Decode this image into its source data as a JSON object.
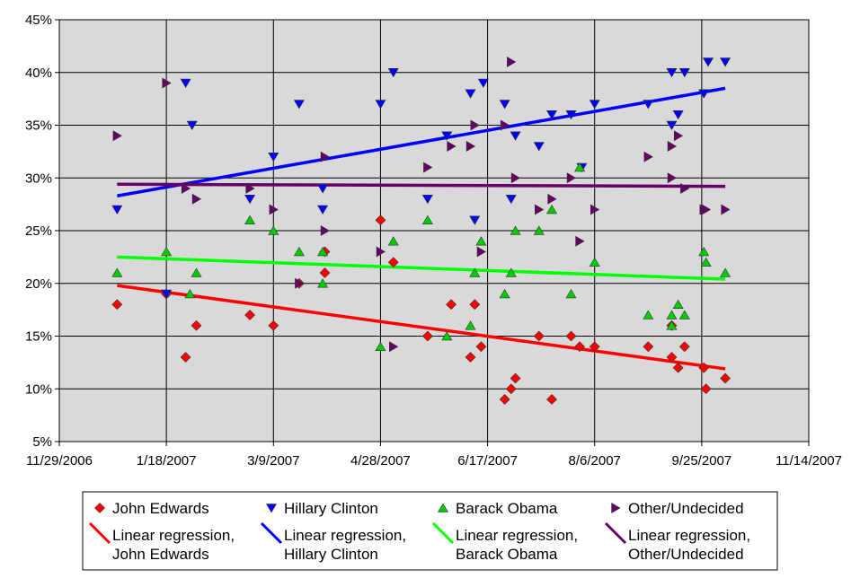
{
  "chart_data": {
    "type": "scatter",
    "x_axis": {
      "type": "date",
      "min": "2006-11-29",
      "max": "2007-11-14",
      "ticks": [
        "2006-11-29",
        "2007-01-18",
        "2007-03-09",
        "2007-04-28",
        "2007-06-17",
        "2007-08-06",
        "2007-09-25",
        "2007-11-14"
      ],
      "tick_labels": [
        "11/29/2006",
        "1/18/2007",
        "3/9/2007",
        "4/28/2007",
        "6/17/2007",
        "8/6/2007",
        "9/25/2007",
        "11/14/2007"
      ]
    },
    "y_axis": {
      "min": 5,
      "max": 45,
      "step": 5,
      "tick_labels": [
        "5%",
        "10%",
        "15%",
        "20%",
        "25%",
        "30%",
        "35%",
        "40%",
        "45%"
      ]
    },
    "grid": true,
    "plot_background": "#d9d9d9",
    "legend_position": "bottom",
    "series": [
      {
        "name": "John Edwards",
        "marker": "diamond",
        "color": "#ff0000",
        "points": [
          [
            "2006-12-26",
            18
          ],
          [
            "2007-01-18",
            19
          ],
          [
            "2007-01-27",
            13
          ],
          [
            "2007-02-01",
            16
          ],
          [
            "2007-02-26",
            17
          ],
          [
            "2007-03-09",
            16
          ],
          [
            "2007-03-21",
            20
          ],
          [
            "2007-03-33",
            21
          ],
          [
            "2007-04-02",
            23
          ],
          [
            "2007-04-28",
            26
          ],
          [
            "2007-05-04",
            22
          ],
          [
            "2007-05-20",
            15
          ],
          [
            "2007-05-31",
            18
          ],
          [
            "2007-06-09",
            13
          ],
          [
            "2007-06-11",
            18
          ],
          [
            "2007-06-14",
            14
          ],
          [
            "2007-06-25",
            9
          ],
          [
            "2007-06-28",
            10
          ],
          [
            "2007-06-30",
            11
          ],
          [
            "2007-07-11",
            15
          ],
          [
            "2007-07-17",
            9
          ],
          [
            "2007-07-26",
            15
          ],
          [
            "2007-07-30",
            14
          ],
          [
            "2007-08-06",
            14
          ],
          [
            "2007-08-31",
            14
          ],
          [
            "2007-09-11",
            13
          ],
          [
            "2007-09-11",
            16
          ],
          [
            "2007-09-14",
            12
          ],
          [
            "2007-09-17",
            14
          ],
          [
            "2007-09-26",
            12
          ],
          [
            "2007-09-27",
            10
          ],
          [
            "2007-10-06",
            11
          ]
        ]
      },
      {
        "name": "Hillary Clinton",
        "marker": "triangle-down",
        "color": "#0000ff",
        "points": [
          [
            "2006-12-26",
            27
          ],
          [
            "2007-01-18",
            19
          ],
          [
            "2007-01-27",
            39
          ],
          [
            "2007-01-30",
            35
          ],
          [
            "2007-02-26",
            28
          ],
          [
            "2007-03-09",
            32
          ],
          [
            "2007-03-21",
            37
          ],
          [
            "2007-04-01",
            29
          ],
          [
            "2007-04-01",
            27
          ],
          [
            "2007-04-28",
            37
          ],
          [
            "2007-05-04",
            40
          ],
          [
            "2007-05-20",
            28
          ],
          [
            "2007-05-29",
            34
          ],
          [
            "2007-06-09",
            38
          ],
          [
            "2007-06-11",
            26
          ],
          [
            "2007-06-15",
            39
          ],
          [
            "2007-06-25",
            37
          ],
          [
            "2007-06-28",
            28
          ],
          [
            "2007-06-30",
            34
          ],
          [
            "2007-07-11",
            33
          ],
          [
            "2007-07-17",
            36
          ],
          [
            "2007-07-26",
            36
          ],
          [
            "2007-07-31",
            31
          ],
          [
            "2007-08-06",
            37
          ],
          [
            "2007-08-31",
            37
          ],
          [
            "2007-09-11",
            40
          ],
          [
            "2007-09-11",
            35
          ],
          [
            "2007-09-14",
            36
          ],
          [
            "2007-09-17",
            40
          ],
          [
            "2007-09-26",
            38
          ],
          [
            "2007-09-28",
            41
          ],
          [
            "2007-10-06",
            41
          ]
        ]
      },
      {
        "name": "Barack Obama",
        "marker": "triangle-up",
        "color": "#00cc00",
        "points": [
          [
            "2006-12-26",
            21
          ],
          [
            "2007-01-18",
            23
          ],
          [
            "2007-01-29",
            19
          ],
          [
            "2007-02-01",
            21
          ],
          [
            "2007-02-26",
            26
          ],
          [
            "2007-03-09",
            25
          ],
          [
            "2007-03-21",
            23
          ],
          [
            "2007-04-01",
            20
          ],
          [
            "2007-04-01",
            23
          ],
          [
            "2007-04-28",
            14
          ],
          [
            "2007-05-04",
            24
          ],
          [
            "2007-05-20",
            26
          ],
          [
            "2007-05-29",
            15
          ],
          [
            "2007-06-09",
            16
          ],
          [
            "2007-06-11",
            21
          ],
          [
            "2007-06-14",
            24
          ],
          [
            "2007-06-25",
            19
          ],
          [
            "2007-06-28",
            21
          ],
          [
            "2007-06-30",
            25
          ],
          [
            "2007-07-11",
            25
          ],
          [
            "2007-07-17",
            27
          ],
          [
            "2007-07-26",
            19
          ],
          [
            "2007-07-30",
            31
          ],
          [
            "2007-08-06",
            22
          ],
          [
            "2007-08-31",
            17
          ],
          [
            "2007-09-11",
            17
          ],
          [
            "2007-09-11",
            16
          ],
          [
            "2007-09-14",
            18
          ],
          [
            "2007-09-17",
            17
          ],
          [
            "2007-09-26",
            23
          ],
          [
            "2007-09-27",
            22
          ],
          [
            "2007-10-06",
            21
          ]
        ]
      },
      {
        "name": "Other/Undecided",
        "marker": "triangle-right",
        "color": "#660066",
        "points": [
          [
            "2006-12-26",
            34
          ],
          [
            "2007-01-18",
            39
          ],
          [
            "2007-01-27",
            29
          ],
          [
            "2007-02-01",
            28
          ],
          [
            "2007-02-26",
            29
          ],
          [
            "2007-03-09",
            27
          ],
          [
            "2007-03-21",
            20
          ],
          [
            "2007-04-02",
            32
          ],
          [
            "2007-04-02",
            25
          ],
          [
            "2007-04-28",
            23
          ],
          [
            "2007-05-04",
            14
          ],
          [
            "2007-05-20",
            31
          ],
          [
            "2007-05-31",
            33
          ],
          [
            "2007-06-09",
            33
          ],
          [
            "2007-06-11",
            35
          ],
          [
            "2007-06-14",
            23
          ],
          [
            "2007-06-25",
            35
          ],
          [
            "2007-06-28",
            41
          ],
          [
            "2007-06-30",
            30
          ],
          [
            "2007-07-11",
            27
          ],
          [
            "2007-07-17",
            28
          ],
          [
            "2007-07-26",
            30
          ],
          [
            "2007-07-30",
            24
          ],
          [
            "2007-08-06",
            27
          ],
          [
            "2007-08-31",
            32
          ],
          [
            "2007-09-11",
            33
          ],
          [
            "2007-09-11",
            30
          ],
          [
            "2007-09-14",
            34
          ],
          [
            "2007-09-17",
            29
          ],
          [
            "2007-09-26",
            27
          ],
          [
            "2007-09-27",
            27
          ],
          [
            "2007-10-06",
            27
          ]
        ]
      }
    ],
    "trendlines": [
      {
        "name": "Linear regression, John Edwards",
        "name_lines": [
          "Linear regression,",
          "John Edwards"
        ],
        "color": "#ff0000",
        "start": [
          "2006-12-26",
          19.8
        ],
        "end": [
          "2007-10-06",
          11.9
        ]
      },
      {
        "name": "Linear regression, Hillary Clinton",
        "name_lines": [
          "Linear regression,",
          "Hillary Clinton"
        ],
        "color": "#0000ff",
        "start": [
          "2006-12-26",
          28.3
        ],
        "end": [
          "2007-10-06",
          38.5
        ]
      },
      {
        "name": "Linear regression, Barack Obama",
        "name_lines": [
          "Linear regression,",
          "Barack Obama"
        ],
        "color": "#00ff00",
        "start": [
          "2006-12-26",
          22.5
        ],
        "end": [
          "2007-10-06",
          20.4
        ]
      },
      {
        "name": "Linear regression, Other/Undecided",
        "name_lines": [
          "Linear regression,",
          "Other/Undecided"
        ],
        "color": "#660066",
        "start": [
          "2006-12-26",
          29.4
        ],
        "end": [
          "2007-10-06",
          29.2
        ]
      }
    ]
  }
}
